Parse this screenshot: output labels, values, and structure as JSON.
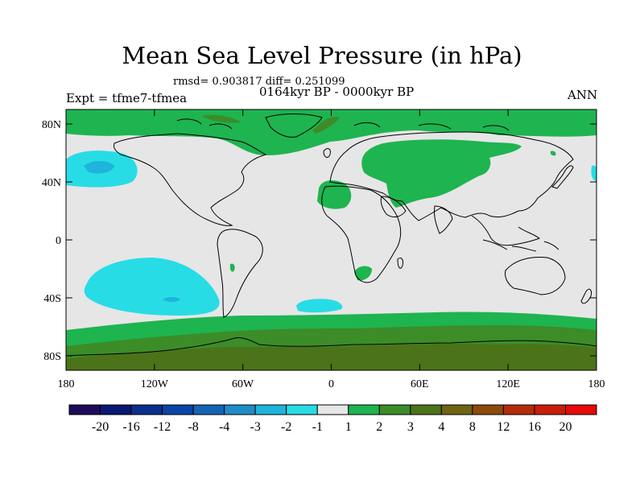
{
  "header": {
    "title": "Mean Sea Level Pressure (in hPa)",
    "stats": "rmsd= 0.903817 diff= 0.251099",
    "period": "0164kyr BP - 0000kyr BP",
    "experiment": "Expt = tfme7-tfmea",
    "season": "ANN"
  },
  "map": {
    "projection": "cylindrical-equidistant",
    "lon_range": [
      -180,
      180
    ],
    "lat_range": [
      -90,
      90
    ],
    "x_ticks": [
      {
        "value": -180,
        "label": "180"
      },
      {
        "value": -120,
        "label": "120W"
      },
      {
        "value": -60,
        "label": "60W"
      },
      {
        "value": 0,
        "label": "0"
      },
      {
        "value": 60,
        "label": "60E"
      },
      {
        "value": 120,
        "label": "120E"
      },
      {
        "value": 180,
        "label": "180"
      }
    ],
    "y_ticks": [
      {
        "value": 80,
        "label": "80N"
      },
      {
        "value": 40,
        "label": "40N"
      },
      {
        "value": 0,
        "label": "0"
      },
      {
        "value": -40,
        "label": "40S"
      },
      {
        "value": -80,
        "label": "80S"
      }
    ],
    "background_color": "#e6e6e6",
    "coastline_color": "#000000"
  },
  "colorbar": {
    "labels": [
      "-20",
      "-16",
      "-12",
      "-8",
      "-4",
      "-3",
      "-2",
      "-1",
      "1",
      "2",
      "3",
      "4",
      "8",
      "12",
      "16",
      "20"
    ],
    "colors": [
      "#1e0b5a",
      "#0a1873",
      "#0a2f8c",
      "#0a44a6",
      "#1464b4",
      "#1e8cc8",
      "#1eb4dc",
      "#28dce6",
      "#e6e6e6",
      "#1eb450",
      "#3c8c28",
      "#4b7319",
      "#6e6414",
      "#8c4b0a",
      "#b42d0a",
      "#c81e0a",
      "#e60a0a"
    ]
  }
}
